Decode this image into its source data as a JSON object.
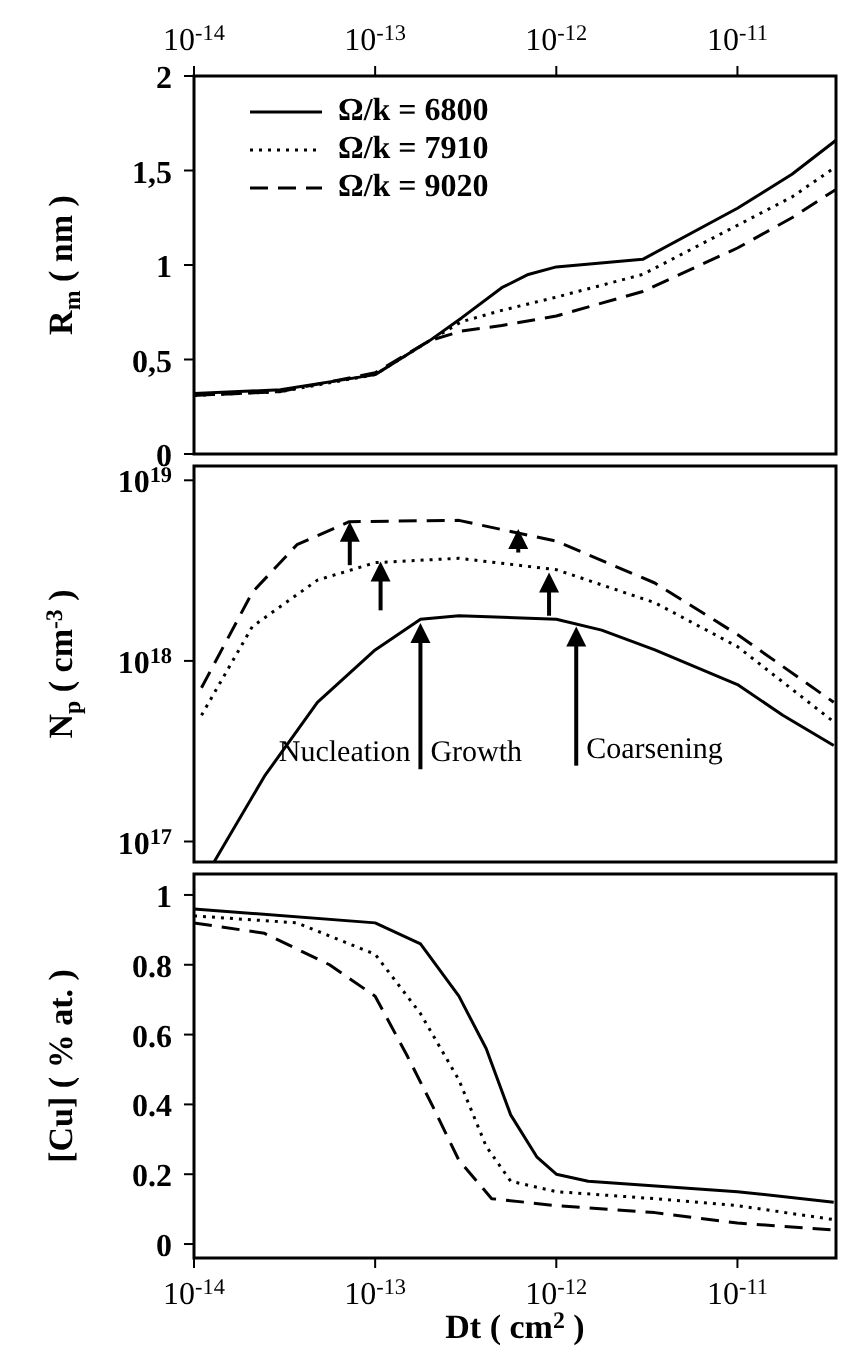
{
  "chart_data": [
    {
      "type": "line",
      "ylabel": "R$_{m}$ ( nm )",
      "xlim": [
        1e-14,
        3.5e-11
      ],
      "xticks": [
        {
          "value": 1e-14,
          "label": "10$^{-14}$"
        },
        {
          "value": 1e-13,
          "label": "10$^{-13}$"
        },
        {
          "value": 1e-12,
          "label": "10$^{-12}$"
        },
        {
          "value": 1e-11,
          "label": "10$^{-11}$"
        }
      ],
      "ylim": [
        0,
        2
      ],
      "yticks": [
        0,
        {
          "value": 0.5,
          "label": "0,5"
        },
        1,
        {
          "value": 1.5,
          "label": "1,5"
        },
        2
      ],
      "log": "x",
      "legend": "top left",
      "marker": "none",
      "grid": false,
      "series": [
        {
          "name": "Ω/k = 6800",
          "color": "#000000",
          "line_style": "solid",
          "x": [
            1e-14,
            3e-14,
            1e-13,
            2e-13,
            3e-13,
            5e-13,
            7e-13,
            1e-12,
            3e-12,
            1e-11,
            2e-11,
            3.5e-11
          ],
          "values": [
            0.32,
            0.34,
            0.42,
            0.6,
            0.72,
            0.88,
            0.95,
            0.99,
            1.03,
            1.3,
            1.48,
            1.66
          ]
        },
        {
          "name": "Ω/k = 7910",
          "color": "#000000",
          "line_style": "dotted",
          "x": [
            1e-14,
            3e-14,
            1e-13,
            2e-13,
            3e-13,
            5e-13,
            1e-12,
            3e-12,
            1e-11,
            2e-11,
            3.5e-11
          ],
          "values": [
            0.31,
            0.33,
            0.42,
            0.6,
            0.7,
            0.76,
            0.83,
            0.95,
            1.21,
            1.36,
            1.52
          ]
        },
        {
          "name": "Ω/k = 9020",
          "color": "#000000",
          "line_style": "dashed",
          "x": [
            1e-14,
            3e-14,
            1e-13,
            2e-13,
            3e-13,
            5e-13,
            1e-12,
            3e-12,
            1e-11,
            2e-11,
            3.5e-11
          ],
          "values": [
            0.31,
            0.33,
            0.43,
            0.6,
            0.65,
            0.68,
            0.73,
            0.86,
            1.09,
            1.25,
            1.4
          ]
        }
      ]
    },
    {
      "type": "line",
      "ylabel": "N$_{p}$ ( cm$^{-3}$ )",
      "xlim": [
        1e-14,
        3.5e-11
      ],
      "ylim": [
        7.7e+16,
        1.2e+19
      ],
      "yticks": [
        {
          "value": 1e+17,
          "label": "10$^{17}$"
        },
        {
          "value": 1e+18,
          "label": "10$^{18}$"
        },
        {
          "value": 1e+19,
          "label": "10$^{19}$"
        }
      ],
      "log": "xy",
      "tick_labels": "y",
      "marker": "none",
      "grid": false,
      "annotations": [
        "Nucleation",
        "Growth",
        "Coarsening"
      ],
      "series": [
        {
          "color": "#000000",
          "line_style": "solid",
          "x": [
            1.29e-14,
            2.45e-14,
            4.8e-14,
            1e-13,
            1.78e-13,
            2.9e-13,
            1e-12,
            1.78e-12,
            3.5e-12,
            1e-11,
            1.78e-11,
            3.4e-11
          ],
          "values": [
            7.7e+16,
            2.3e+17,
            5.9e+17,
            1.15e+18,
            1.7e+18,
            1.78e+18,
            1.7e+18,
            1.48e+18,
            1.15e+18,
            7.4e+17,
            5e+17,
            3.4e+17
          ]
        },
        {
          "color": "#000000",
          "line_style": "dotted",
          "x": [
            1.1e-14,
            2.1e-14,
            4.8e-14,
            1e-13,
            2.9e-13,
            1e-12,
            3.5e-12,
            1e-11,
            3.4e-11
          ],
          "values": [
            5e+17,
            1.55e+18,
            2.8e+18,
            3.5e+18,
            3.7e+18,
            3.2e+18,
            2.1e+18,
            1.2e+18,
            4.6e+17
          ]
        },
        {
          "color": "#000000",
          "line_style": "dashed",
          "x": [
            1.1e-14,
            2.1e-14,
            3.7e-14,
            7.2e-14,
            2.9e-13,
            1e-12,
            3.5e-12,
            1e-11,
            3.4e-11
          ],
          "values": [
            7.1e+17,
            2.4e+18,
            4.4e+18,
            5.9e+18,
            6e+18,
            4.6e+18,
            2.7e+18,
            1.4e+18,
            5.9e+17
          ]
        }
      ]
    },
    {
      "type": "line",
      "xlabel": "Dt ( cm$^{2}$ )",
      "ylabel": "[Cu] ( % at. )",
      "xlim": [
        1e-14,
        3.5e-11
      ],
      "xticks": [
        {
          "value": 1e-14,
          "label": "10$^{-14}$"
        },
        {
          "value": 1e-13,
          "label": "10$^{-13}$"
        },
        {
          "value": 1e-12,
          "label": "10$^{-12}$"
        },
        {
          "value": 1e-11,
          "label": "10$^{-11}$"
        }
      ],
      "ylim": [
        -0.04,
        1.06
      ],
      "yticks": [
        0,
        0.2,
        0.4,
        0.6,
        0.8,
        1
      ],
      "log": "x",
      "marker": "none",
      "grid": false,
      "series": [
        {
          "color": "#000000",
          "line_style": "solid",
          "x": [
            1e-14,
            1e-13,
            1.78e-13,
            2.9e-13,
            4.1e-13,
            5.6e-13,
            7.8e-13,
            1e-12,
            1.5e-12,
            1e-11,
            3.4e-11
          ],
          "values": [
            0.96,
            0.92,
            0.86,
            0.71,
            0.56,
            0.37,
            0.25,
            0.2,
            0.18,
            0.15,
            0.12
          ]
        },
        {
          "color": "#000000",
          "line_style": "dotted",
          "x": [
            1e-14,
            3.7e-14,
            1e-13,
            1.78e-13,
            2.9e-13,
            4.1e-13,
            5.6e-13,
            1e-12,
            3.5e-12,
            1e-11,
            3.4e-11
          ],
          "values": [
            0.94,
            0.92,
            0.83,
            0.66,
            0.47,
            0.28,
            0.18,
            0.15,
            0.13,
            0.11,
            0.07
          ]
        },
        {
          "color": "#000000",
          "line_style": "dashed",
          "x": [
            1e-14,
            2.45e-14,
            5.6e-14,
            1e-13,
            1.5e-13,
            2.1e-13,
            2.9e-13,
            4.4e-13,
            1e-12,
            3.5e-12,
            1e-11,
            3.4e-11
          ],
          "values": [
            0.92,
            0.89,
            0.8,
            0.71,
            0.54,
            0.39,
            0.24,
            0.13,
            0.11,
            0.09,
            0.06,
            0.04
          ]
        }
      ]
    }
  ]
}
